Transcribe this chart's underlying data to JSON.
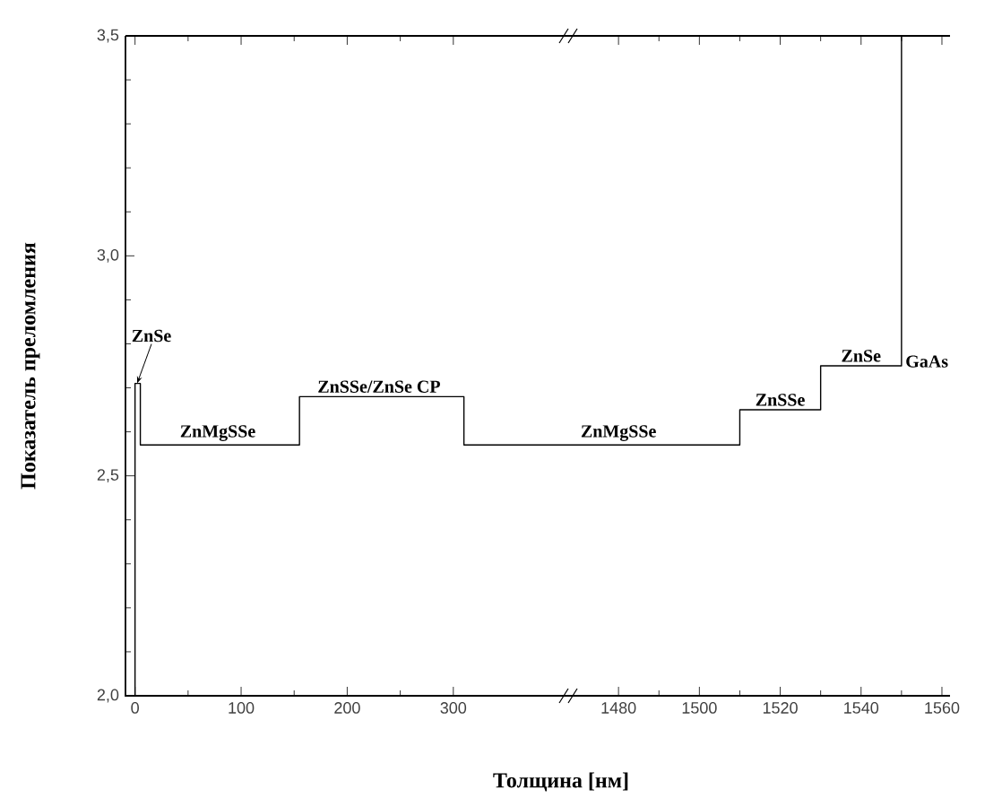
{
  "chart_data": [
    {
      "type": "line",
      "xlabel": "Толщина [нм]",
      "ylabel": "Показатель преломления",
      "x": [
        0,
        0,
        5,
        5,
        155,
        155,
        310,
        310,
        410
      ],
      "values": [
        2.0,
        2.71,
        2.71,
        2.57,
        2.57,
        2.68,
        2.68,
        2.57,
        2.57
      ],
      "color": "#000000",
      "xlim": [
        -9,
        410
      ],
      "ylim": [
        2.0,
        3.5
      ],
      "xticks": [
        0,
        100,
        200,
        300
      ],
      "yticks": [
        {
          "value": 2.0,
          "label": "2,0"
        },
        {
          "value": 2.5,
          "label": "2,5"
        },
        {
          "value": 3.0,
          "label": "3,0"
        },
        {
          "value": 3.5,
          "label": "3,5"
        }
      ],
      "annotations": [
        {
          "text": "ZnSe",
          "x": 2,
          "y": 2.71
        },
        {
          "text": "ZnMgSSe",
          "x": 78,
          "y": 2.57
        },
        {
          "text": "ZnSSe/ZnSe CP",
          "x": 230,
          "y": 2.68
        }
      ]
    },
    {
      "type": "line",
      "x": [
        1468,
        1510,
        1510,
        1530,
        1530,
        1550,
        1550
      ],
      "values": [
        2.57,
        2.57,
        2.65,
        2.65,
        2.75,
        2.75,
        3.5
      ],
      "color": "#000000",
      "xlim": [
        1468,
        1562
      ],
      "ylim": [
        2.0,
        3.5
      ],
      "xticks": [
        1480,
        1500,
        1520,
        1540,
        1560
      ],
      "annotations": [
        {
          "text": "ZnMgSSe",
          "x": 1480,
          "y": 2.57
        },
        {
          "text": "ZnSSe",
          "x": 1520,
          "y": 2.65
        },
        {
          "text": "ZnSe",
          "x": 1540,
          "y": 2.75
        },
        {
          "text": "GaAs",
          "x": 1550,
          "y": 2.76
        }
      ]
    }
  ]
}
